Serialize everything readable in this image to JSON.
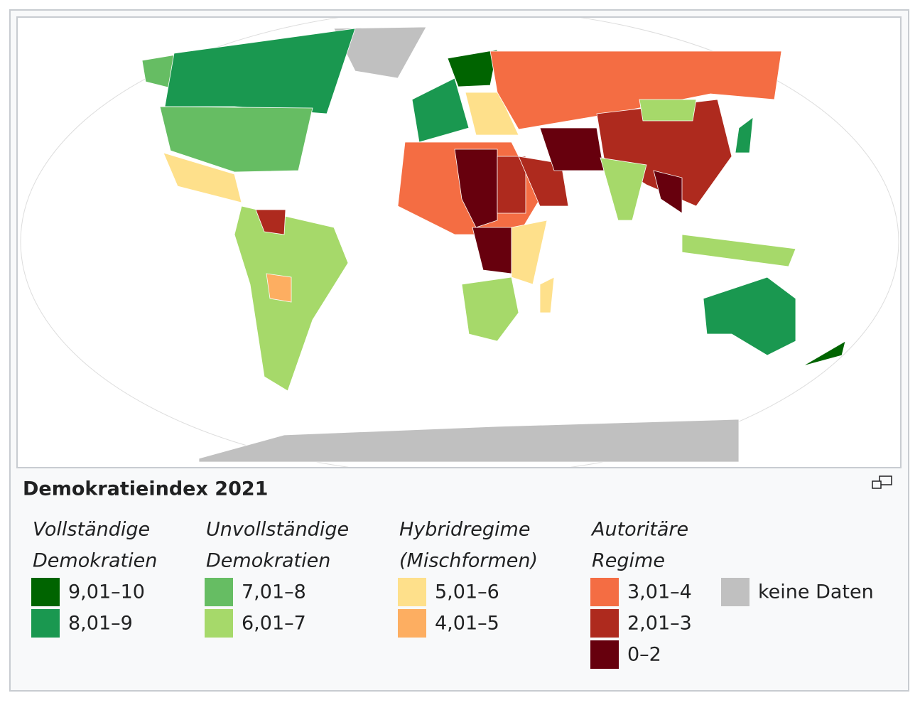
{
  "title": "Demokratieindex 2021",
  "legend": [
    {
      "heading": [
        "Vollständige",
        "Demokratien"
      ],
      "entries": [
        {
          "label": "9,01–10",
          "color": "#006400"
        },
        {
          "label": "8,01–9",
          "color": "#1a9850"
        }
      ]
    },
    {
      "heading": [
        "Unvollständige",
        "Demokratien"
      ],
      "entries": [
        {
          "label": "7,01–8",
          "color": "#66bd63"
        },
        {
          "label": "6,01–7",
          "color": "#a6d96a"
        }
      ]
    },
    {
      "heading": [
        "Hybridregime",
        "(Mischformen)"
      ],
      "entries": [
        {
          "label": "5,01–6",
          "color": "#fee08b"
        },
        {
          "label": "4,01–5",
          "color": "#fdae61"
        }
      ]
    },
    {
      "heading": [
        "Autoritäre",
        "Regime"
      ],
      "entries": [
        {
          "label": "3,01–4",
          "color": "#f46d43"
        },
        {
          "label": "2,01–3",
          "color": "#ae2a1e"
        },
        {
          "label": "0–2",
          "color": "#67000d"
        }
      ]
    },
    {
      "entries": [
        {
          "label": "keine Daten",
          "color": "#c0c0c0"
        }
      ]
    }
  ]
}
